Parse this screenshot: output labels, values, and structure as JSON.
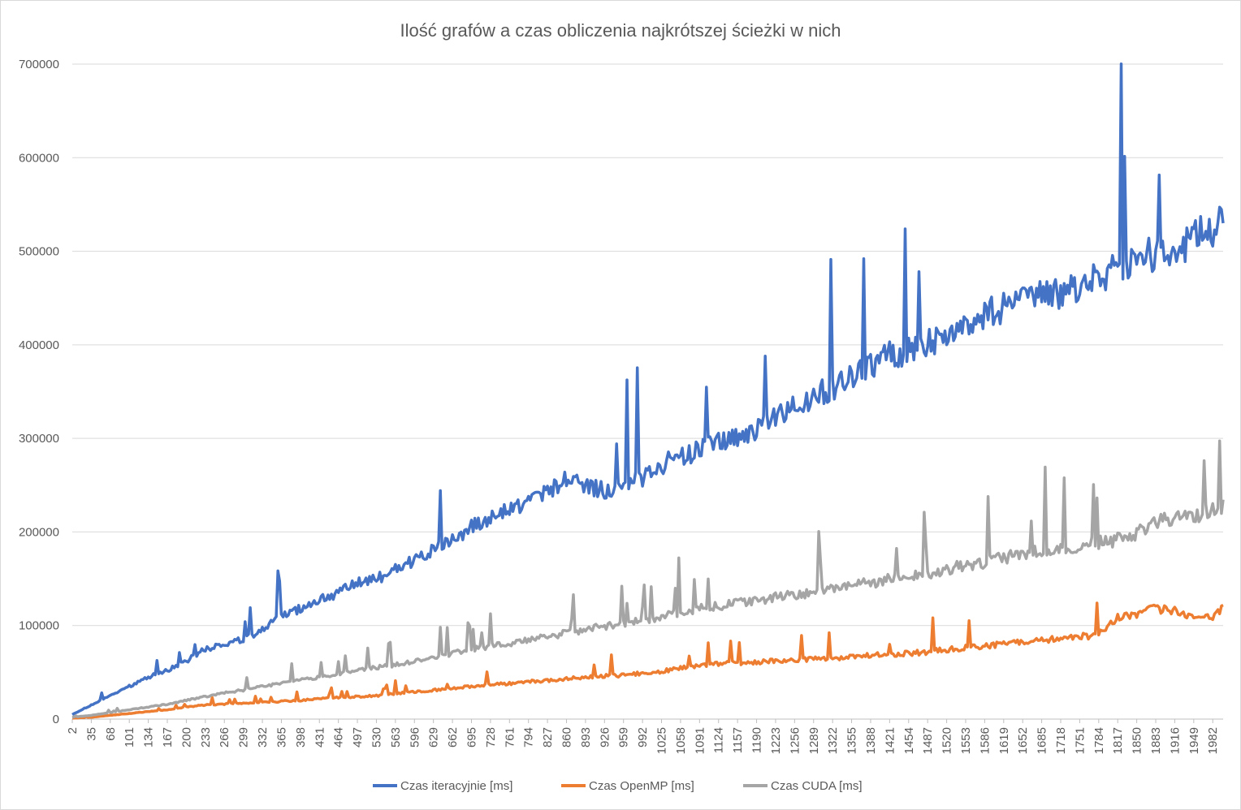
{
  "chart_data": {
    "type": "line",
    "title": "Ilość grafów a czas obliczenia najkrótszej ścieżki w nich",
    "xlabel": "",
    "ylabel": "",
    "ylim": [
      0,
      700000
    ],
    "y_ticks": [
      0,
      100000,
      200000,
      300000,
      400000,
      500000,
      600000,
      700000
    ],
    "x_range": [
      2,
      2000
    ],
    "x_tick_step": 33,
    "x_ticks": [
      2,
      35,
      68,
      101,
      134,
      167,
      200,
      233,
      266,
      299,
      332,
      365,
      398,
      431,
      464,
      497,
      530,
      563,
      596,
      629,
      662,
      695,
      728,
      761,
      794,
      827,
      860,
      893,
      926,
      959,
      992,
      1025,
      1058,
      1091,
      1124,
      1157,
      1190,
      1223,
      1256,
      1289,
      1322,
      1355,
      1388,
      1421,
      1454,
      1487,
      1520,
      1553,
      1586,
      1619,
      1652,
      1685,
      1718,
      1751,
      1784,
      1817,
      1850,
      1883,
      1916,
      1949,
      1982
    ],
    "grid": "horizontal",
    "legend_position": "bottom",
    "series": [
      {
        "name": "Czas iteracyjnie [ms]",
        "color": "#4472c4",
        "x": [
          2,
          35,
          68,
          101,
          134,
          167,
          200,
          233,
          266,
          299,
          332,
          365,
          398,
          431,
          464,
          497,
          530,
          563,
          596,
          629,
          662,
          695,
          728,
          761,
          794,
          827,
          860,
          893,
          926,
          959,
          992,
          1025,
          1058,
          1091,
          1124,
          1157,
          1190,
          1223,
          1256,
          1289,
          1322,
          1355,
          1388,
          1421,
          1454,
          1487,
          1520,
          1553,
          1586,
          1619,
          1652,
          1685,
          1718,
          1751,
          1784,
          1817,
          1850,
          1883,
          1916,
          1949,
          1982,
          2000
        ],
        "values": [
          5000,
          15000,
          25000,
          35000,
          45000,
          52000,
          62000,
          75000,
          80000,
          85000,
          95000,
          110000,
          118000,
          128000,
          135000,
          145000,
          150000,
          160000,
          170000,
          180000,
          192000,
          205000,
          215000,
          225000,
          232000,
          245000,
          255000,
          250000,
          245000,
          252000,
          258000,
          272000,
          280000,
          287000,
          295000,
          300000,
          310000,
          320000,
          335000,
          345000,
          355000,
          365000,
          380000,
          388000,
          395000,
          402000,
          410000,
          420000,
          432000,
          440000,
          448000,
          450000,
          455000,
          462000,
          475000,
          480000,
          490000,
          500000,
          505000,
          512000,
          525000,
          530000
        ]
      },
      {
        "name": "Czas OpenMP [ms]",
        "color": "#ed7d31",
        "x": [
          2,
          35,
          68,
          101,
          134,
          167,
          200,
          233,
          266,
          299,
          332,
          365,
          398,
          431,
          464,
          497,
          530,
          563,
          596,
          629,
          662,
          695,
          728,
          761,
          794,
          827,
          860,
          893,
          926,
          959,
          992,
          1025,
          1058,
          1091,
          1124,
          1157,
          1190,
          1223,
          1256,
          1289,
          1322,
          1355,
          1388,
          1421,
          1454,
          1487,
          1520,
          1553,
          1586,
          1619,
          1652,
          1685,
          1718,
          1751,
          1784,
          1817,
          1850,
          1883,
          1916,
          1949,
          1982,
          2000
        ],
        "values": [
          1000,
          2000,
          4000,
          6000,
          8000,
          10000,
          13000,
          15000,
          16000,
          17000,
          18000,
          19000,
          20000,
          22000,
          23000,
          24000,
          25000,
          27000,
          29000,
          31000,
          33000,
          35000,
          37000,
          38000,
          40000,
          41000,
          43000,
          45000,
          46000,
          47000,
          49000,
          51000,
          55000,
          57000,
          59000,
          60000,
          61000,
          62000,
          63000,
          64000,
          65000,
          67000,
          68000,
          69000,
          70000,
          72000,
          74000,
          76000,
          78000,
          80000,
          82000,
          84000,
          86000,
          88000,
          90000,
          108000,
          112000,
          118000,
          115000,
          110000,
          108000,
          118000
        ]
      },
      {
        "name": "Czas CUDA [ms]",
        "color": "#a5a5a5",
        "x": [
          2,
          35,
          68,
          101,
          134,
          167,
          200,
          233,
          266,
          299,
          332,
          365,
          398,
          431,
          464,
          497,
          530,
          563,
          596,
          629,
          662,
          695,
          728,
          761,
          794,
          827,
          860,
          893,
          926,
          959,
          992,
          1025,
          1058,
          1091,
          1124,
          1157,
          1190,
          1223,
          1256,
          1289,
          1322,
          1355,
          1388,
          1421,
          1454,
          1487,
          1520,
          1553,
          1586,
          1619,
          1652,
          1685,
          1718,
          1751,
          1784,
          1817,
          1850,
          1883,
          1916,
          1949,
          1982,
          2000
        ],
        "values": [
          2000,
          4000,
          7000,
          10000,
          13000,
          16000,
          20000,
          24000,
          28000,
          31000,
          35000,
          38000,
          42000,
          45000,
          48000,
          52000,
          55000,
          58000,
          62000,
          66000,
          70000,
          74000,
          78000,
          81000,
          84000,
          88000,
          92000,
          96000,
          99000,
          102000,
          105000,
          110000,
          114000,
          118000,
          121000,
          124000,
          127000,
          130000,
          133000,
          136000,
          140000,
          143000,
          146000,
          149000,
          152000,
          156000,
          160000,
          164000,
          168000,
          172000,
          176000,
          179000,
          182000,
          185000,
          188000,
          192000,
          198000,
          210000,
          215000,
          218000,
          222000,
          228000
        ]
      }
    ]
  }
}
